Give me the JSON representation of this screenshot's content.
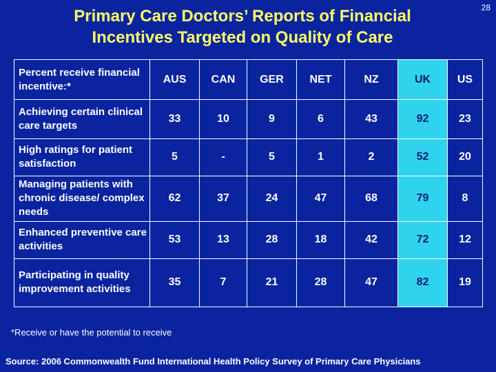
{
  "page_number": "28",
  "title_lines": [
    "Primary Care Doctors’ Reports of Financial",
    "Incentives Targeted on Quality of Care"
  ],
  "colors": {
    "background": "#0a24a0",
    "title": "#ffff66",
    "highlight": "#2fd3ee",
    "text": "#ffffff"
  },
  "chart_data": {
    "type": "table",
    "title": "Primary Care Doctors’ Reports of Financial Incentives Targeted on Quality of Care",
    "header_label": "Percent receive financial incentive:*",
    "columns": [
      "AUS",
      "CAN",
      "GER",
      "NET",
      "NZ",
      "UK",
      "US"
    ],
    "highlight_column": "UK",
    "rows": [
      {
        "label": "Achieving certain clinical care targets",
        "values": [
          "33",
          "10",
          "9",
          "6",
          "43",
          "92",
          "23"
        ]
      },
      {
        "label": "High ratings for patient satisfaction",
        "values": [
          "5",
          "-",
          "5",
          "1",
          "2",
          "52",
          "20"
        ]
      },
      {
        "label": "Managing patients with chronic disease/ complex needs",
        "values": [
          "62",
          "37",
          "24",
          "47",
          "68",
          "79",
          "8"
        ]
      },
      {
        "label": "Enhanced preventive care activities",
        "values": [
          "53",
          "13",
          "28",
          "18",
          "42",
          "72",
          "12"
        ]
      },
      {
        "label": "Participating in quality improvement activities",
        "values": [
          "35",
          "7",
          "21",
          "28",
          "47",
          "82",
          "19"
        ]
      }
    ]
  },
  "footnote": "*Receive or have the potential to receive",
  "source": "Source: 2006 Commonwealth Fund International Health Policy Survey of Primary Care Physicians"
}
